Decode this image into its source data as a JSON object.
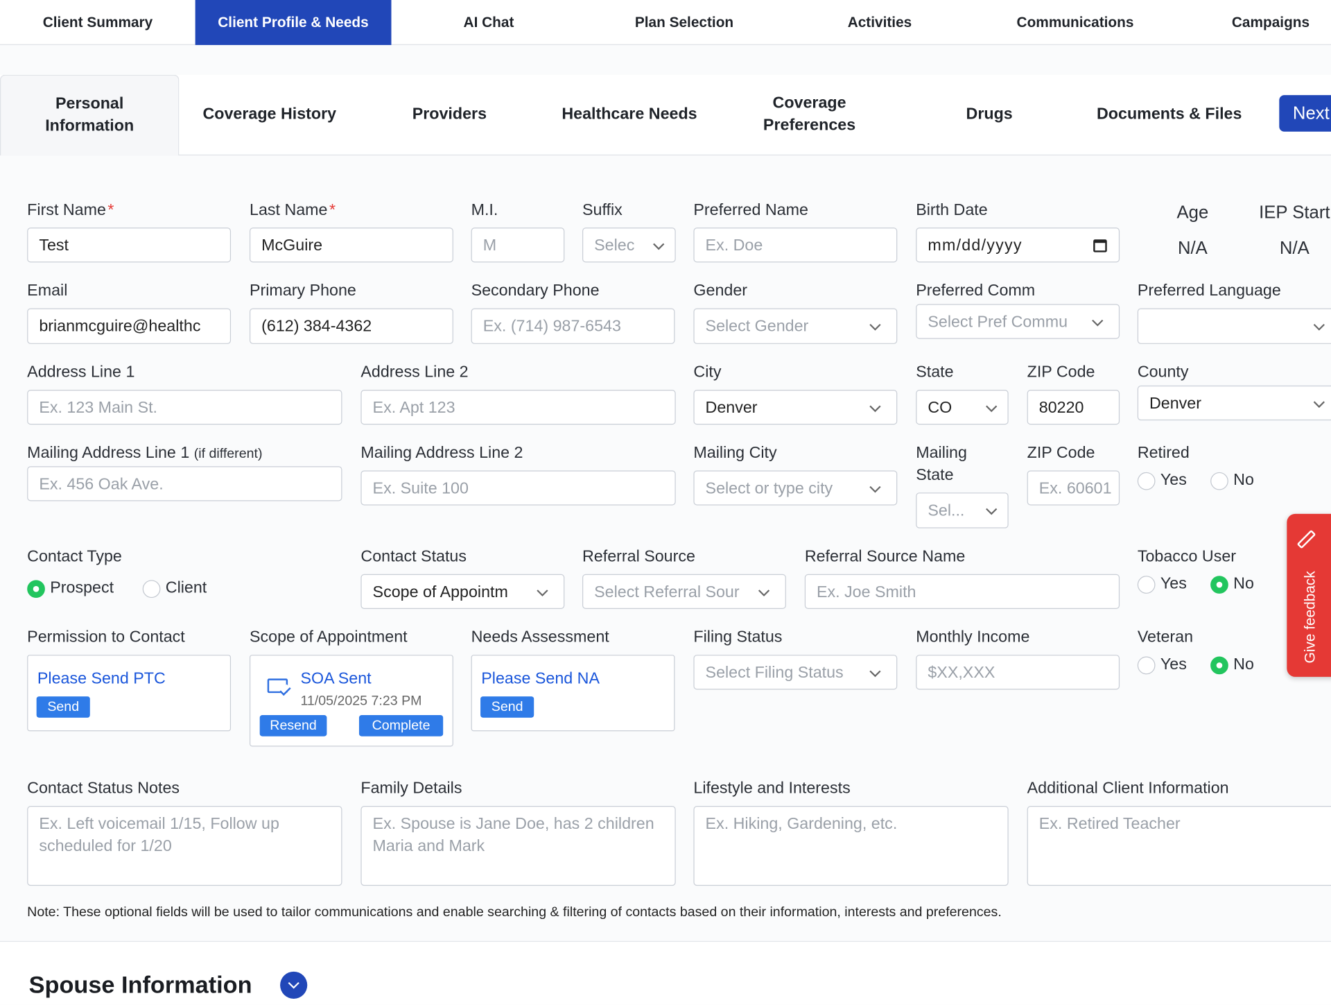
{
  "top_tabs": [
    "Client Summary",
    "Client Profile & Needs",
    "AI Chat",
    "Plan Selection",
    "Activities",
    "Communications",
    "Campaigns"
  ],
  "sub_tabs": [
    "Personal Information",
    "Coverage History",
    "Providers",
    "Healthcare Needs",
    "Coverage Preferences",
    "Drugs",
    "Documents & Files"
  ],
  "next_button": "Next",
  "personal": {
    "first_name": {
      "label": "First Name",
      "required": "*",
      "value": "Test"
    },
    "last_name": {
      "label": "Last Name",
      "required": "*",
      "value": "McGuire"
    },
    "middle_initial": {
      "label": "M.I.",
      "placeholder": "M"
    },
    "suffix": {
      "label": "Suffix",
      "placeholder": "Selec"
    },
    "preferred_name": {
      "label": "Preferred Name",
      "placeholder": "Ex. Doe"
    },
    "birth_date": {
      "label": "Birth Date",
      "value": "mm/dd/yyyy"
    },
    "age": {
      "label": "Age",
      "value": "N/A"
    },
    "iep_start": {
      "label": "IEP Start",
      "value": "N/A"
    },
    "email": {
      "label": "Email",
      "value": "brianmcguire@healthc"
    },
    "primary_phone": {
      "label": "Primary Phone",
      "value": "(612) 384-4362"
    },
    "secondary_phone": {
      "label": "Secondary Phone",
      "placeholder": "Ex. (714) 987-6543"
    },
    "gender": {
      "label": "Gender",
      "placeholder": "Select Gender"
    },
    "preferred_comm": {
      "label": "Preferred Comm",
      "placeholder": "Select Pref Commu"
    },
    "preferred_language": {
      "label": "Preferred Language"
    },
    "address_line_1": {
      "label": "Address Line 1",
      "placeholder": "Ex. 123 Main St."
    },
    "address_line_2": {
      "label": "Address Line 2",
      "placeholder": "Ex. Apt 123"
    },
    "city": {
      "label": "City",
      "value": "Denver"
    },
    "state": {
      "label": "State",
      "value": "CO"
    },
    "zip": {
      "label": "ZIP Code",
      "value": "80220"
    },
    "county": {
      "label": "County",
      "value": "Denver"
    },
    "mailing_address_1": {
      "label": "Mailing Address Line 1",
      "note": "(if different)",
      "placeholder": "Ex. 456 Oak Ave."
    },
    "mailing_address_2": {
      "label": "Mailing Address Line 2",
      "placeholder": "Ex. Suite 100"
    },
    "mailing_city": {
      "label": "Mailing City",
      "placeholder": "Select or type city"
    },
    "mailing_state": {
      "label": "Mailing State",
      "placeholder": "Sel..."
    },
    "mailing_zip": {
      "label": "ZIP Code",
      "placeholder": "Ex. 60601"
    },
    "retired": {
      "label": "Retired",
      "options": [
        {
          "label": "Yes",
          "checked": false
        },
        {
          "label": "No",
          "checked": false
        }
      ]
    },
    "contact_type": {
      "label": "Contact Type",
      "options": [
        {
          "label": "Prospect",
          "checked": true
        },
        {
          "label": "Client",
          "checked": false
        }
      ]
    },
    "contact_status": {
      "label": "Contact Status",
      "value": "Scope of Appointm"
    },
    "referral_source": {
      "label": "Referral Source",
      "placeholder": "Select Referral Sour"
    },
    "referral_source_name": {
      "label": "Referral Source Name",
      "placeholder": "Ex. Joe Smith"
    },
    "tobacco_user": {
      "label": "Tobacco User",
      "options": [
        {
          "label": "Yes",
          "checked": false
        },
        {
          "label": "No",
          "checked": true
        }
      ]
    },
    "permission_to_contact": {
      "label": "Permission to Contact",
      "link": "Please Send PTC",
      "button": "Send"
    },
    "scope_of_appointment": {
      "label": "Scope of Appointment",
      "status": "SOA Sent",
      "date": "11/05/2025 7:23 PM",
      "buttons": [
        "Resend",
        "Complete"
      ]
    },
    "needs_assessment": {
      "label": "Needs Assessment",
      "link": "Please Send NA",
      "button": "Send"
    },
    "filing_status": {
      "label": "Filing Status",
      "placeholder": "Select Filing Status"
    },
    "monthly_income": {
      "label": "Monthly Income",
      "placeholder": "$XX,XXX"
    },
    "veteran": {
      "label": "Veteran",
      "options": [
        {
          "label": "Yes",
          "checked": false
        },
        {
          "label": "No",
          "checked": true
        }
      ]
    },
    "contact_status_notes": {
      "label": "Contact Status Notes",
      "placeholder": "Ex. Left voicemail 1/15, Follow up scheduled for 1/20"
    },
    "family_details": {
      "label": "Family Details",
      "placeholder": "Ex. Spouse is Jane Doe, has 2 children Maria and Mark"
    },
    "lifestyle": {
      "label": "Lifestyle and Interests",
      "placeholder": "Ex. Hiking, Gardening, etc."
    },
    "additional_info": {
      "label": "Additional Client Information",
      "placeholder": "Ex. Retired Teacher"
    }
  },
  "note": "Note: These optional fields will be used to tailor communications and enable searching & filtering of contacts based on their information, interests and preferences.",
  "spouse_section": "Spouse Information",
  "feedback": "Give feedback"
}
